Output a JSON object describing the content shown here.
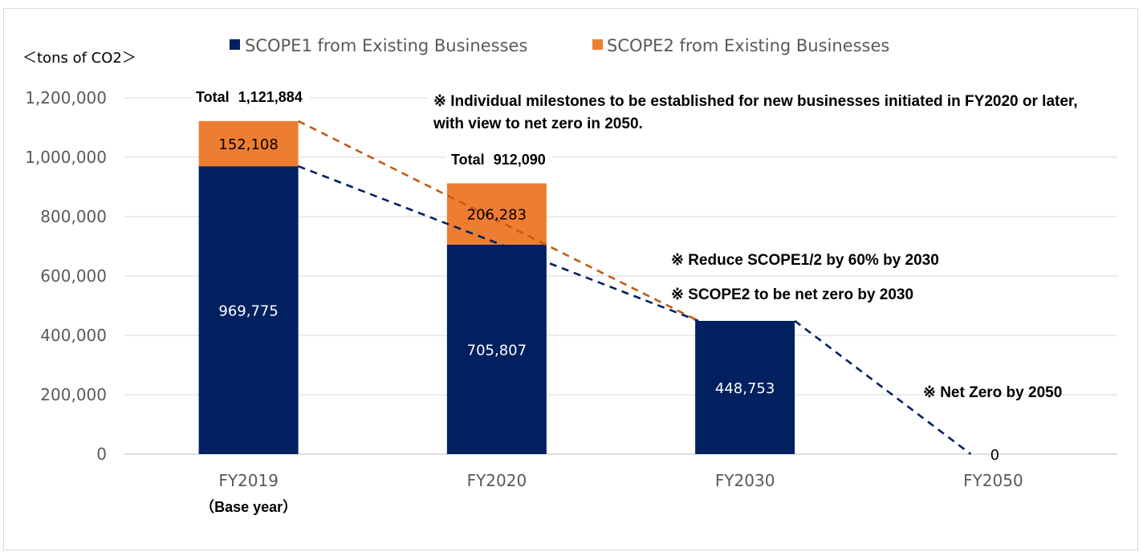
{
  "chart_data": {
    "type": "bar",
    "stacked": true,
    "unit_label": "＜tons of CO2＞",
    "categories": [
      "FY2019",
      "FY2020",
      "FY2030",
      "FY2050"
    ],
    "category_sublabels": [
      "（Base year）",
      "",
      "",
      ""
    ],
    "series": [
      {
        "name": "SCOPE1 from Existing Businesses",
        "color": "#002060",
        "values": [
          969775,
          705807,
          448753,
          0
        ]
      },
      {
        "name": "SCOPE2 from Existing Businesses",
        "color": "#ED7D31",
        "values": [
          152108,
          206283,
          0,
          0
        ]
      }
    ],
    "segment_labels": [
      [
        "969,775",
        "152,108"
      ],
      [
        "705,807",
        "206,283"
      ],
      [
        "448,753",
        ""
      ],
      [
        "0",
        ""
      ]
    ],
    "totals": [
      {
        "prefix": "Total",
        "value": "1,121,884"
      },
      {
        "prefix": "Total",
        "value": "912,090"
      }
    ],
    "ylim": [
      0,
      1200000
    ],
    "yticks": [
      "0",
      "200,000",
      "400,000",
      "600,000",
      "800,000",
      "1,000,000",
      "1,200,000"
    ],
    "yticks_values": [
      0,
      200000,
      400000,
      600000,
      800000,
      1000000,
      1200000
    ],
    "legend_position": "top",
    "grid": true,
    "annotations": {
      "note1_line1": "※ Individual milestones to be established for new businesses initiated in FY2020 or later,",
      "note1_line2": "with view to net zero in 2050.",
      "note2": "※ Reduce SCOPE1/2 by 60% by 2030",
      "note3": "※ SCOPE2 to be net zero by 2030",
      "note4": "※ Net Zero by 2050"
    },
    "trend_lines": [
      {
        "name": "scope1-trend",
        "color": "#002060",
        "points": [
          [
            "FY2019",
            969775
          ],
          [
            "FY2030",
            448753
          ],
          [
            "FY2050",
            0
          ]
        ]
      },
      {
        "name": "total-trend",
        "color": "#C55A11",
        "points": [
          [
            "FY2019",
            1121884
          ],
          [
            "FY2030",
            448753
          ]
        ]
      }
    ]
  }
}
